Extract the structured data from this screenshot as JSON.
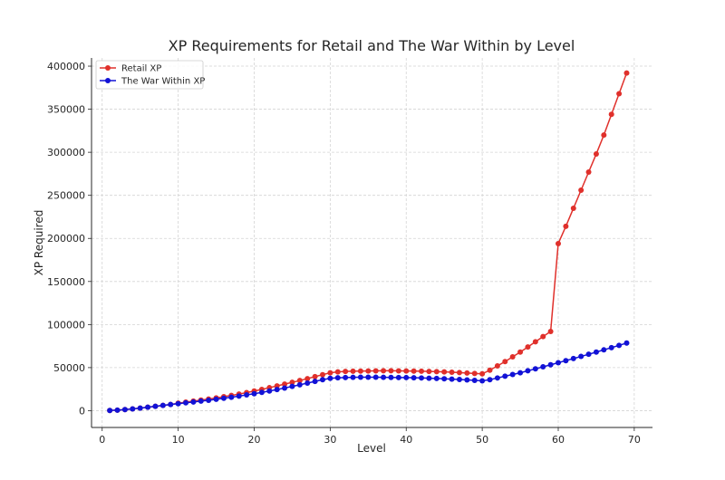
{
  "chart_data": {
    "type": "line",
    "title": "XP Requirements for Retail and The War Within by Level",
    "xlabel": "Level",
    "ylabel": "XP Required",
    "xlim": [
      -1.4,
      72.4
    ],
    "ylim": [
      -19500,
      409500
    ],
    "xticks": [
      0,
      10,
      20,
      30,
      40,
      50,
      60,
      70
    ],
    "yticks": [
      0,
      50000,
      100000,
      150000,
      200000,
      250000,
      300000,
      350000,
      400000
    ],
    "grid": true,
    "legend_position": "top-left",
    "x": [
      1,
      2,
      3,
      4,
      5,
      6,
      7,
      8,
      9,
      10,
      11,
      12,
      13,
      14,
      15,
      16,
      17,
      18,
      19,
      20,
      21,
      22,
      23,
      24,
      25,
      26,
      27,
      28,
      29,
      30,
      31,
      32,
      33,
      34,
      35,
      36,
      37,
      38,
      39,
      40,
      41,
      42,
      43,
      44,
      45,
      46,
      47,
      48,
      49,
      50,
      51,
      52,
      53,
      54,
      55,
      56,
      57,
      58,
      59,
      60,
      61,
      62,
      63,
      64,
      65,
      66,
      67,
      68,
      69
    ],
    "series": [
      {
        "name": "Retail XP",
        "color": "#e0302b",
        "values": [
          250,
          655,
          1265,
          2085,
          2970,
          3980,
          5065,
          6100,
          7150,
          8700,
          9900,
          11100,
          12300,
          13500,
          14800,
          16200,
          17700,
          19300,
          21000,
          22800,
          24700,
          26700,
          28700,
          30800,
          32900,
          35000,
          37200,
          39500,
          41800,
          44000,
          45000,
          45500,
          45800,
          46000,
          46100,
          46200,
          46300,
          46300,
          46200,
          46100,
          46000,
          45800,
          45600,
          45300,
          45000,
          44600,
          44200,
          43700,
          43200,
          42800,
          47000,
          52000,
          57000,
          62500,
          68000,
          74000,
          80000,
          86000,
          92000,
          194000,
          214000,
          235000,
          256000,
          277000,
          298000,
          320000,
          344000,
          368000,
          392000
        ]
      },
      {
        "name": "The War Within XP",
        "color": "#1212d6",
        "values": [
          250,
          655,
          1265,
          2085,
          2970,
          3980,
          5065,
          6100,
          7150,
          8150,
          9150,
          10100,
          11100,
          12100,
          13200,
          14400,
          15600,
          16900,
          18300,
          19700,
          21200,
          22800,
          24500,
          26300,
          28200,
          30100,
          32000,
          34000,
          36000,
          37600,
          38200,
          38500,
          38700,
          38800,
          38800,
          38800,
          38700,
          38600,
          38500,
          38400,
          38200,
          38000,
          37700,
          37400,
          37000,
          36600,
          36200,
          35700,
          35200,
          34700,
          36000,
          38000,
          40000,
          42000,
          44000,
          46300,
          48600,
          50900,
          53300,
          55700,
          58100,
          60500,
          63000,
          65500,
          68000,
          70600,
          73200,
          75800,
          78500
        ]
      }
    ]
  }
}
